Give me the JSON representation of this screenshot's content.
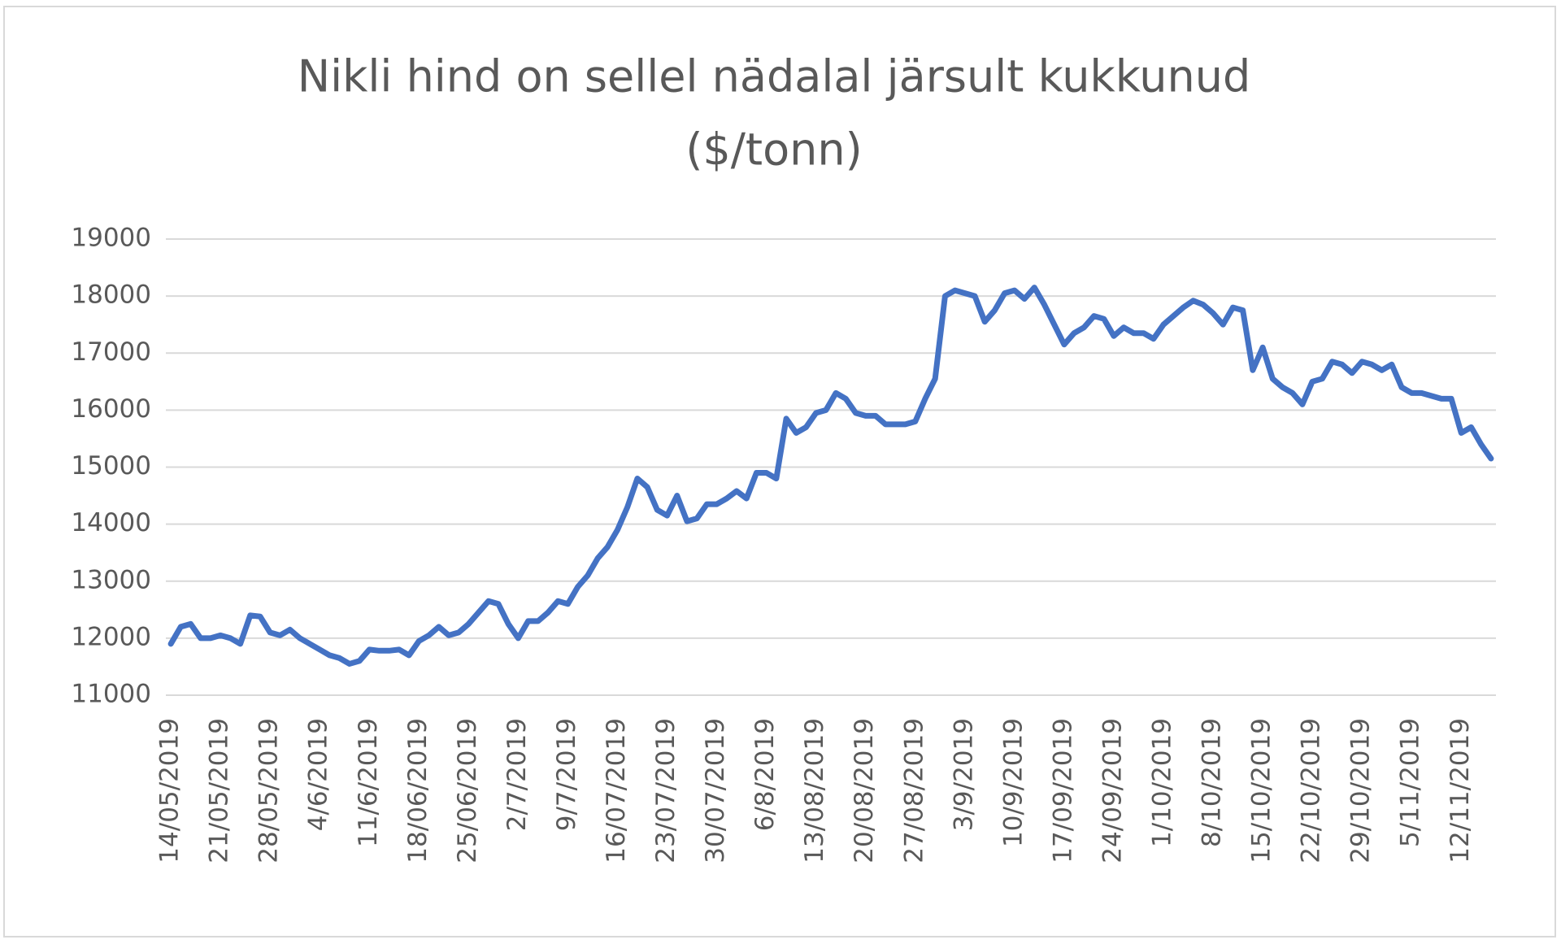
{
  "chart_data": {
    "type": "line",
    "title": [
      "Nikli hind on sellel nädalal järsult kukkunud",
      "($/tonn)"
    ],
    "categories": [
      "14/05/2019",
      null,
      null,
      null,
      null,
      "21/05/2019",
      null,
      null,
      null,
      null,
      "28/05/2019",
      null,
      null,
      null,
      null,
      "4/6/2019",
      null,
      null,
      null,
      null,
      "11/6/2019",
      null,
      null,
      null,
      null,
      "18/06/2019",
      null,
      null,
      null,
      null,
      "25/06/2019",
      null,
      null,
      null,
      null,
      "2/7/2019",
      null,
      null,
      null,
      null,
      "9/7/2019",
      null,
      null,
      null,
      null,
      "16/07/2019",
      null,
      null,
      null,
      null,
      "23/07/2019",
      null,
      null,
      null,
      null,
      "30/07/2019",
      null,
      null,
      null,
      null,
      "6/8/2019",
      null,
      null,
      null,
      null,
      "13/08/2019",
      null,
      null,
      null,
      null,
      "20/08/2019",
      null,
      null,
      null,
      null,
      "27/08/2019",
      null,
      null,
      null,
      null,
      "3/9/2019",
      null,
      null,
      null,
      null,
      "10/9/2019",
      null,
      null,
      null,
      null,
      "17/09/2019",
      null,
      null,
      null,
      null,
      "24/09/2019",
      null,
      null,
      null,
      null,
      "1/10/2019",
      null,
      null,
      null,
      null,
      "8/10/2019",
      null,
      null,
      null,
      null,
      "15/10/2019",
      null,
      null,
      null,
      null,
      "22/10/2019",
      null,
      null,
      null,
      null,
      "29/10/2019",
      null,
      null,
      null,
      null,
      "5/11/2019",
      null,
      null,
      null,
      null,
      "12/11/2019",
      null,
      null,
      null
    ],
    "series": [
      {
        "color": "#4472c4",
        "values": [
          11900,
          12200,
          12250,
          12000,
          12000,
          12050,
          12000,
          11900,
          12400,
          12380,
          12100,
          12050,
          12150,
          12000,
          11900,
          11800,
          11700,
          11650,
          11550,
          11600,
          11800,
          11780,
          11780,
          11800,
          11700,
          11950,
          12050,
          12200,
          12050,
          12100,
          12250,
          12450,
          12650,
          12600,
          12250,
          12000,
          12300,
          12300,
          12450,
          12650,
          12600,
          12900,
          13100,
          13400,
          13600,
          13900,
          14300,
          14800,
          14650,
          14250,
          14150,
          14500,
          14050,
          14100,
          14350,
          14350,
          14450,
          14580,
          14450,
          14900,
          14900,
          14800,
          15850,
          15600,
          15700,
          15950,
          16000,
          16300,
          16200,
          15950,
          15900,
          15900,
          15750,
          15750,
          15750,
          15800,
          16200,
          16550,
          18000,
          18100,
          18050,
          18000,
          17550,
          17750,
          18050,
          18100,
          17950,
          18150,
          17850,
          17500,
          17150,
          17350,
          17450,
          17650,
          17600,
          17300,
          17450,
          17350,
          17350,
          17250,
          17500,
          17650,
          17800,
          17920,
          17850,
          17700,
          17500,
          17800,
          17750,
          16700,
          17100,
          16550,
          16400,
          16300,
          16100,
          16500,
          16550,
          16850,
          16800,
          16650,
          16850,
          16800,
          16700,
          16800,
          16400,
          16300,
          16300,
          16250,
          16200,
          16200,
          15600,
          15700,
          15400,
          15150
        ]
      }
    ],
    "ylim": [
      11000,
      19000
    ],
    "yticks": [
      11000,
      12000,
      13000,
      14000,
      15000,
      16000,
      17000,
      18000,
      19000
    ],
    "grid": true
  }
}
